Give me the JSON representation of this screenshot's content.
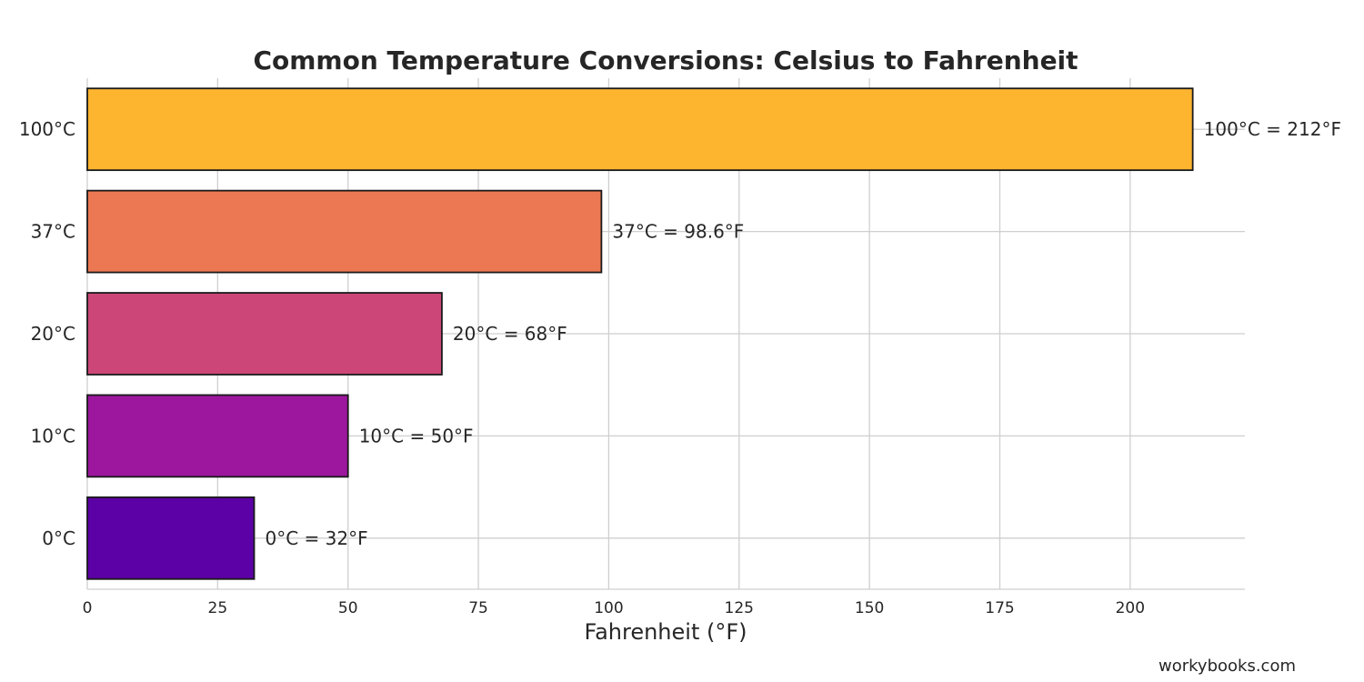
{
  "chart_data": {
    "type": "bar",
    "orientation": "horizontal",
    "title": "Common Temperature Conversions: Celsius to Fahrenheit",
    "xlabel": "Fahrenheit (°F)",
    "ylabel": "",
    "categories": [
      "0°C",
      "10°C",
      "20°C",
      "37°C",
      "100°C"
    ],
    "values": [
      32,
      50,
      68,
      98.6,
      212
    ],
    "data_labels": [
      "0°C = 32°F",
      "10°C = 50°F",
      "20°C = 68°F",
      "37°C = 98.6°F",
      "100°C = 212°F"
    ],
    "colors": [
      "#5c01a6",
      "#9c179e",
      "#cc4778",
      "#ec7853",
      "#fdb42f"
    ],
    "xlim": [
      0,
      222
    ],
    "xticks": [
      0,
      25,
      50,
      75,
      100,
      125,
      150,
      175,
      200
    ],
    "grid": true,
    "legend": "none"
  },
  "watermark": "workybooks.com"
}
